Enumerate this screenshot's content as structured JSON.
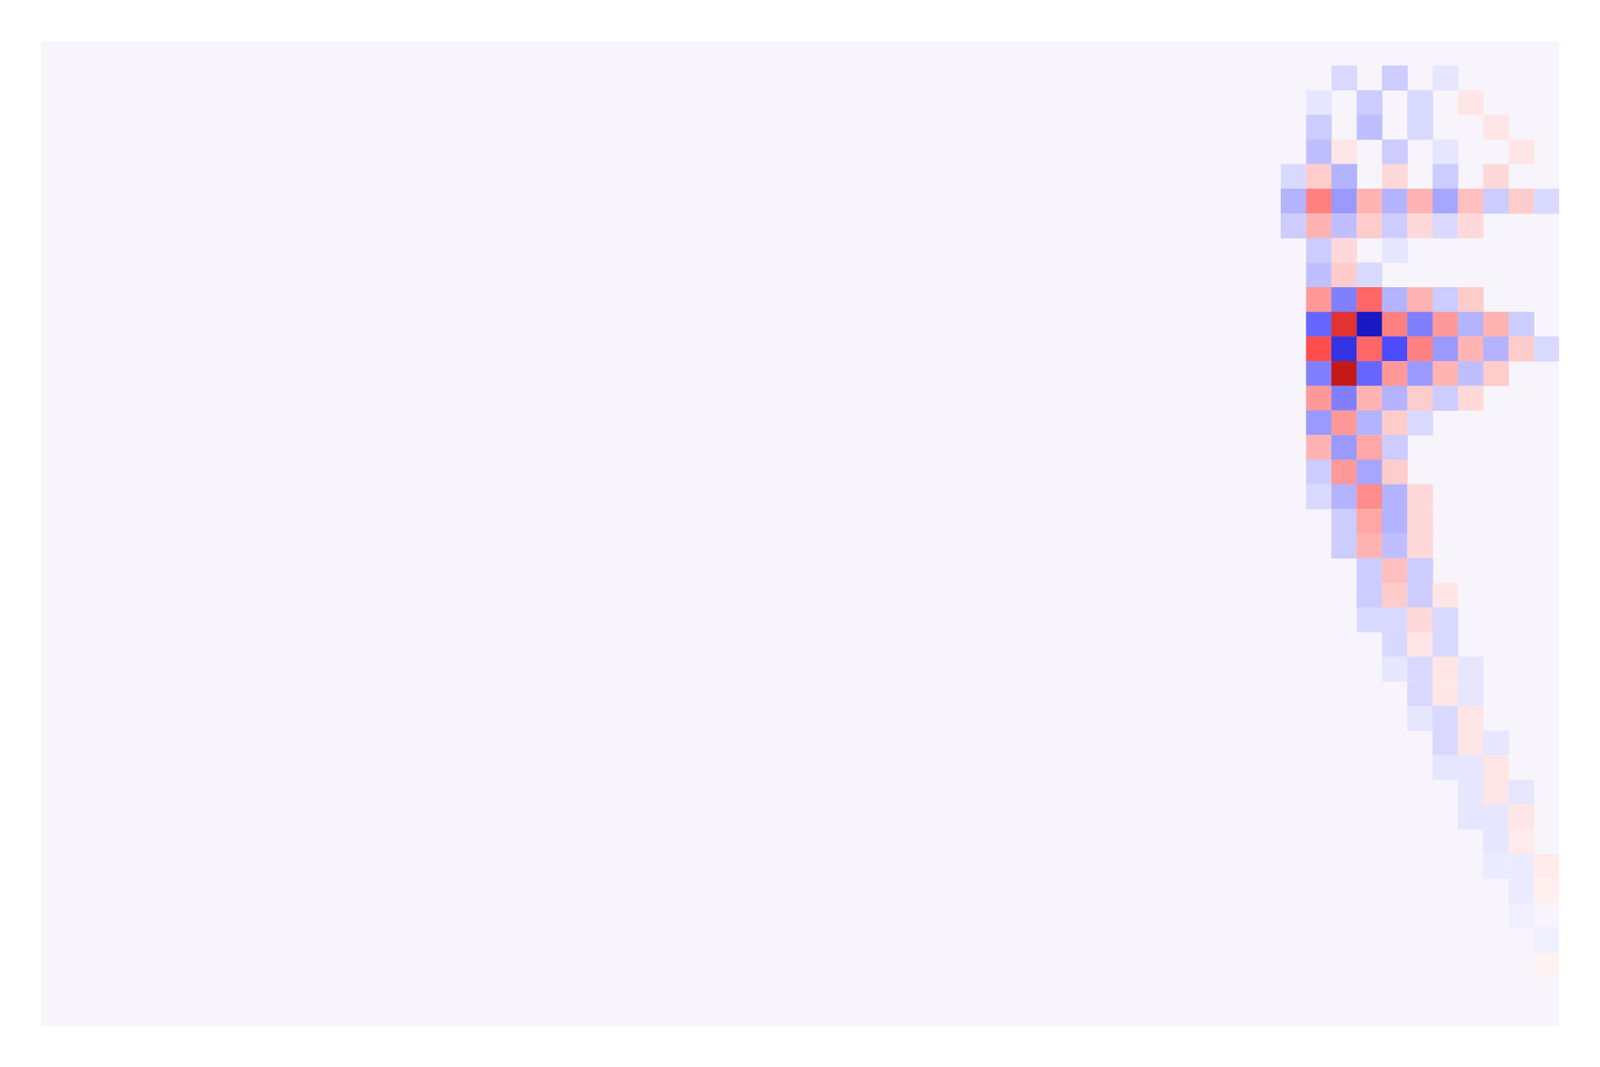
{
  "chart_data": {
    "type": "heatmap",
    "tick_labels": false,
    "xlim": [
      0,
      60
    ],
    "ylim": [
      0,
      40
    ],
    "color_range": [
      -1,
      1
    ],
    "cells": [
      [
        51,
        1,
        -0.15
      ],
      [
        53,
        1,
        -0.2
      ],
      [
        55,
        1,
        -0.1
      ],
      [
        50,
        2,
        -0.1
      ],
      [
        52,
        2,
        -0.2
      ],
      [
        54,
        2,
        -0.15
      ],
      [
        56,
        2,
        0.1
      ],
      [
        50,
        3,
        -0.2
      ],
      [
        52,
        3,
        -0.25
      ],
      [
        54,
        3,
        -0.15
      ],
      [
        57,
        3,
        0.1
      ],
      [
        50,
        4,
        -0.25
      ],
      [
        51,
        4,
        0.1
      ],
      [
        53,
        4,
        -0.2
      ],
      [
        55,
        4,
        -0.1
      ],
      [
        58,
        4,
        0.1
      ],
      [
        49,
        5,
        -0.15
      ],
      [
        50,
        5,
        0.2
      ],
      [
        51,
        5,
        -0.3
      ],
      [
        53,
        5,
        0.15
      ],
      [
        55,
        5,
        -0.2
      ],
      [
        57,
        5,
        0.15
      ],
      [
        49,
        6,
        -0.3
      ],
      [
        50,
        6,
        0.5
      ],
      [
        51,
        6,
        -0.4
      ],
      [
        52,
        6,
        0.3
      ],
      [
        53,
        6,
        -0.3
      ],
      [
        54,
        6,
        0.3
      ],
      [
        55,
        6,
        -0.35
      ],
      [
        56,
        6,
        0.25
      ],
      [
        57,
        6,
        -0.2
      ],
      [
        58,
        6,
        0.2
      ],
      [
        59,
        6,
        -0.15
      ],
      [
        49,
        7,
        -0.2
      ],
      [
        50,
        7,
        0.3
      ],
      [
        51,
        7,
        -0.25
      ],
      [
        52,
        7,
        0.2
      ],
      [
        53,
        7,
        -0.2
      ],
      [
        54,
        7,
        0.15
      ],
      [
        55,
        7,
        -0.15
      ],
      [
        56,
        7,
        0.15
      ],
      [
        50,
        8,
        -0.2
      ],
      [
        51,
        8,
        0.15
      ],
      [
        53,
        8,
        -0.1
      ],
      [
        50,
        9,
        -0.25
      ],
      [
        51,
        9,
        0.2
      ],
      [
        52,
        9,
        -0.15
      ],
      [
        50,
        10,
        0.4
      ],
      [
        51,
        10,
        -0.5
      ],
      [
        52,
        10,
        0.6
      ],
      [
        53,
        10,
        -0.3
      ],
      [
        54,
        10,
        0.3
      ],
      [
        55,
        10,
        -0.2
      ],
      [
        56,
        10,
        0.2
      ],
      [
        50,
        11,
        -0.6
      ],
      [
        51,
        11,
        0.8
      ],
      [
        52,
        11,
        -0.9
      ],
      [
        53,
        11,
        0.5
      ],
      [
        54,
        11,
        -0.5
      ],
      [
        55,
        11,
        0.4
      ],
      [
        56,
        11,
        -0.3
      ],
      [
        57,
        11,
        0.3
      ],
      [
        58,
        11,
        -0.2
      ],
      [
        50,
        12,
        0.7
      ],
      [
        51,
        12,
        -0.8
      ],
      [
        52,
        12,
        0.6
      ],
      [
        53,
        12,
        -0.7
      ],
      [
        54,
        12,
        0.5
      ],
      [
        55,
        12,
        -0.4
      ],
      [
        56,
        12,
        0.3
      ],
      [
        57,
        12,
        -0.3
      ],
      [
        58,
        12,
        0.2
      ],
      [
        59,
        12,
        -0.15
      ],
      [
        50,
        13,
        -0.5
      ],
      [
        51,
        13,
        0.9
      ],
      [
        52,
        13,
        -0.6
      ],
      [
        53,
        13,
        0.4
      ],
      [
        54,
        13,
        -0.4
      ],
      [
        55,
        13,
        0.3
      ],
      [
        56,
        13,
        -0.25
      ],
      [
        57,
        13,
        0.2
      ],
      [
        50,
        14,
        0.4
      ],
      [
        51,
        14,
        -0.5
      ],
      [
        52,
        14,
        0.3
      ],
      [
        53,
        14,
        -0.3
      ],
      [
        54,
        14,
        0.2
      ],
      [
        55,
        14,
        -0.2
      ],
      [
        56,
        14,
        0.15
      ],
      [
        50,
        15,
        -0.4
      ],
      [
        51,
        15,
        0.4
      ],
      [
        52,
        15,
        -0.3
      ],
      [
        53,
        15,
        0.2
      ],
      [
        54,
        15,
        -0.15
      ],
      [
        50,
        16,
        0.3
      ],
      [
        51,
        16,
        -0.4
      ],
      [
        52,
        16,
        0.35
      ],
      [
        53,
        16,
        -0.2
      ],
      [
        50,
        17,
        -0.2
      ],
      [
        51,
        17,
        0.4
      ],
      [
        52,
        17,
        -0.35
      ],
      [
        53,
        17,
        0.2
      ],
      [
        50,
        18,
        -0.15
      ],
      [
        51,
        18,
        -0.3
      ],
      [
        52,
        18,
        0.45
      ],
      [
        53,
        18,
        -0.3
      ],
      [
        54,
        18,
        0.15
      ],
      [
        51,
        19,
        -0.2
      ],
      [
        52,
        19,
        0.35
      ],
      [
        53,
        19,
        -0.3
      ],
      [
        54,
        19,
        0.15
      ],
      [
        51,
        20,
        -0.2
      ],
      [
        52,
        20,
        0.3
      ],
      [
        53,
        20,
        -0.25
      ],
      [
        54,
        20,
        0.15
      ],
      [
        52,
        21,
        -0.2
      ],
      [
        53,
        21,
        0.25
      ],
      [
        54,
        21,
        -0.2
      ],
      [
        52,
        22,
        -0.2
      ],
      [
        53,
        22,
        0.2
      ],
      [
        54,
        22,
        -0.2
      ],
      [
        55,
        22,
        0.1
      ],
      [
        52,
        23,
        -0.15
      ],
      [
        53,
        23,
        -0.15
      ],
      [
        54,
        23,
        0.15
      ],
      [
        55,
        23,
        -0.15
      ],
      [
        53,
        24,
        -0.15
      ],
      [
        54,
        24,
        0.1
      ],
      [
        55,
        24,
        -0.15
      ],
      [
        53,
        25,
        -0.1
      ],
      [
        54,
        25,
        -0.15
      ],
      [
        55,
        25,
        0.1
      ],
      [
        56,
        25,
        -0.1
      ],
      [
        54,
        26,
        -0.15
      ],
      [
        55,
        26,
        0.1
      ],
      [
        56,
        26,
        -0.1
      ],
      [
        54,
        27,
        -0.1
      ],
      [
        55,
        27,
        -0.15
      ],
      [
        56,
        27,
        0.1
      ],
      [
        55,
        28,
        -0.15
      ],
      [
        56,
        28,
        0.1
      ],
      [
        57,
        28,
        -0.1
      ],
      [
        55,
        29,
        -0.1
      ],
      [
        56,
        29,
        -0.1
      ],
      [
        57,
        29,
        0.1
      ],
      [
        56,
        30,
        -0.1
      ],
      [
        57,
        30,
        0.1
      ],
      [
        58,
        30,
        -0.1
      ],
      [
        56,
        31,
        -0.1
      ],
      [
        57,
        31,
        -0.1
      ],
      [
        58,
        31,
        0.1
      ],
      [
        57,
        32,
        -0.1
      ],
      [
        58,
        32,
        0.08
      ],
      [
        57,
        33,
        -0.08
      ],
      [
        58,
        33,
        -0.08
      ],
      [
        59,
        33,
        0.08
      ],
      [
        58,
        34,
        -0.08
      ],
      [
        59,
        34,
        0.06
      ],
      [
        58,
        35,
        -0.06
      ],
      [
        59,
        36,
        -0.06
      ],
      [
        59,
        37,
        0.05
      ]
    ]
  }
}
